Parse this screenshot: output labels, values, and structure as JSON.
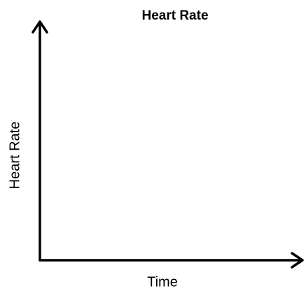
{
  "chart_data": {
    "type": "line",
    "title": "Heart Rate",
    "x_label": "Time",
    "y_label": "Heart Rate"
  }
}
